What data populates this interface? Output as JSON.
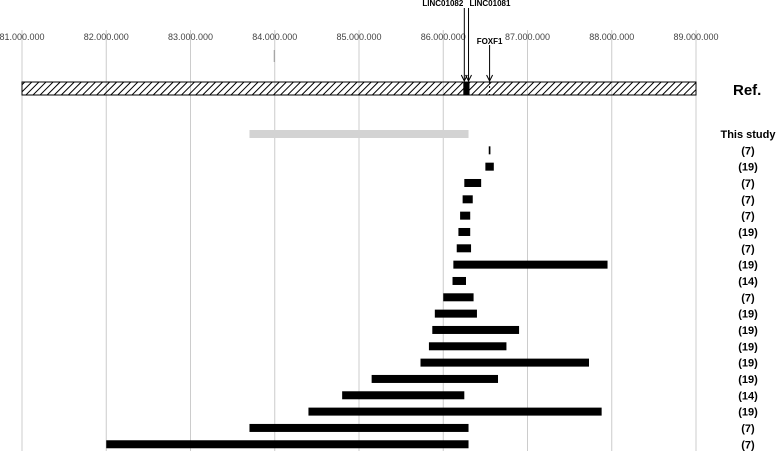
{
  "chart_data": {
    "type": "bar",
    "subtype": "horizontal-range",
    "title": "",
    "xlabel": "",
    "ylabel": "",
    "xlim": [
      81000000,
      89000000
    ],
    "x_ticks": [
      81000000,
      82000000,
      83000000,
      84000000,
      85000000,
      86000000,
      87000000,
      88000000,
      89000000
    ],
    "x_tick_labels": [
      "81.000.000",
      "82.000.000",
      "83.000.000",
      "84.000.000",
      "85.000.000",
      "86.000.000",
      "87.000.000",
      "88.000.000",
      "89.000.000"
    ],
    "grid": true,
    "ref_label": "Ref.",
    "genes": [
      {
        "name": "LINC01082",
        "position": 86250000
      },
      {
        "name": "LINC01081",
        "position": 86300000
      },
      {
        "name": "FOXF1",
        "position": 86550000
      }
    ],
    "rows": [
      {
        "label": "This study",
        "start": 83700000,
        "end": 86300000,
        "highlight": true
      },
      {
        "label": "(7)",
        "start": 86540000,
        "end": 86560000
      },
      {
        "label": "(19)",
        "start": 86500000,
        "end": 86600000
      },
      {
        "label": "(7)",
        "start": 86250000,
        "end": 86450000
      },
      {
        "label": "(7)",
        "start": 86230000,
        "end": 86350000
      },
      {
        "label": "(7)",
        "start": 86200000,
        "end": 86320000
      },
      {
        "label": "(19)",
        "start": 86180000,
        "end": 86320000
      },
      {
        "label": "(7)",
        "start": 86160000,
        "end": 86330000
      },
      {
        "label": "(19)",
        "start": 86120000,
        "end": 87950000
      },
      {
        "label": "(14)",
        "start": 86110000,
        "end": 86270000
      },
      {
        "label": "(7)",
        "start": 86000000,
        "end": 86360000
      },
      {
        "label": "(19)",
        "start": 85900000,
        "end": 86400000
      },
      {
        "label": "(19)",
        "start": 85870000,
        "end": 86900000
      },
      {
        "label": "(19)",
        "start": 85830000,
        "end": 86750000
      },
      {
        "label": "(19)",
        "start": 85730000,
        "end": 87730000
      },
      {
        "label": "(19)",
        "start": 85150000,
        "end": 86650000
      },
      {
        "label": "(14)",
        "start": 84800000,
        "end": 86250000
      },
      {
        "label": "(19)",
        "start": 84400000,
        "end": 87880000
      },
      {
        "label": "(7)",
        "start": 83700000,
        "end": 86300000
      },
      {
        "label": "(7)",
        "start": 82000000,
        "end": 86300000
      }
    ],
    "colors": {
      "bar": "#000000",
      "highlight": "#d3d3d3",
      "grid": "#cccccc"
    }
  }
}
